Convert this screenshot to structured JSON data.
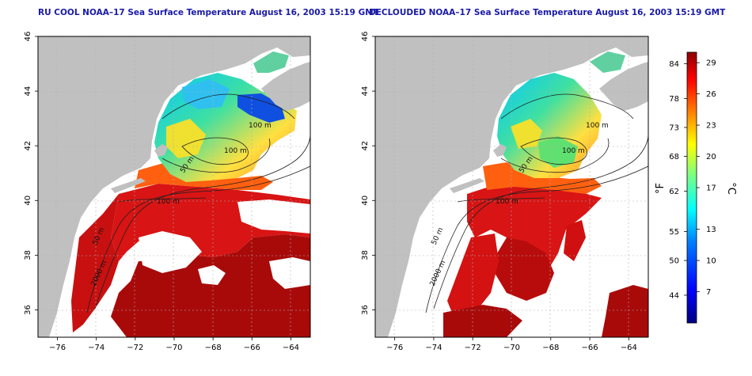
{
  "panels": [
    {
      "title": "RU COOL NOAA–17 Sea Surface Temperature August 16, 2003 15:19 GMT",
      "kind": "raw",
      "contour_labels": [
        "100 m",
        "100 m",
        "50 m",
        "100 m",
        "50 m",
        "2000 m"
      ]
    },
    {
      "title": "DECLOUDED NOAA–17 Sea Surface Temperature August 16, 2003 15:19 GMT",
      "kind": "declouded",
      "contour_labels": [
        "100 m",
        "100 m",
        "50 m",
        "100 m",
        "50 m",
        "2000 m"
      ]
    }
  ],
  "axes": {
    "lon_ticks": [
      "−76",
      "−74",
      "−72",
      "−70",
      "−68",
      "−66",
      "−64"
    ],
    "lat_ticks": [
      "36",
      "38",
      "40",
      "42",
      "44",
      "46"
    ],
    "lon_range": [
      -77,
      -63
    ],
    "lat_range": [
      35,
      46
    ]
  },
  "colorbar": {
    "fahrenheit_ticks": [
      "84",
      "78",
      "73",
      "68",
      "62",
      "55",
      "50",
      "44"
    ],
    "celsius_ticks": [
      "29",
      "26",
      "23",
      "20",
      "17",
      "13",
      "10",
      "7"
    ],
    "fahrenheit_label": "°F",
    "celsius_label": "°C",
    "range_c": [
      4,
      30
    ],
    "colors": [
      "#00007f",
      "#0000ff",
      "#007fff",
      "#00ffff",
      "#7fff7f",
      "#ffff00",
      "#ff7f00",
      "#ff0000",
      "#7f0000"
    ]
  },
  "colors": {
    "land": "#c0c0c0",
    "title": "#1a1aa6",
    "ocean_warm": "#d01010",
    "ocean_deep": "#a80808"
  }
}
